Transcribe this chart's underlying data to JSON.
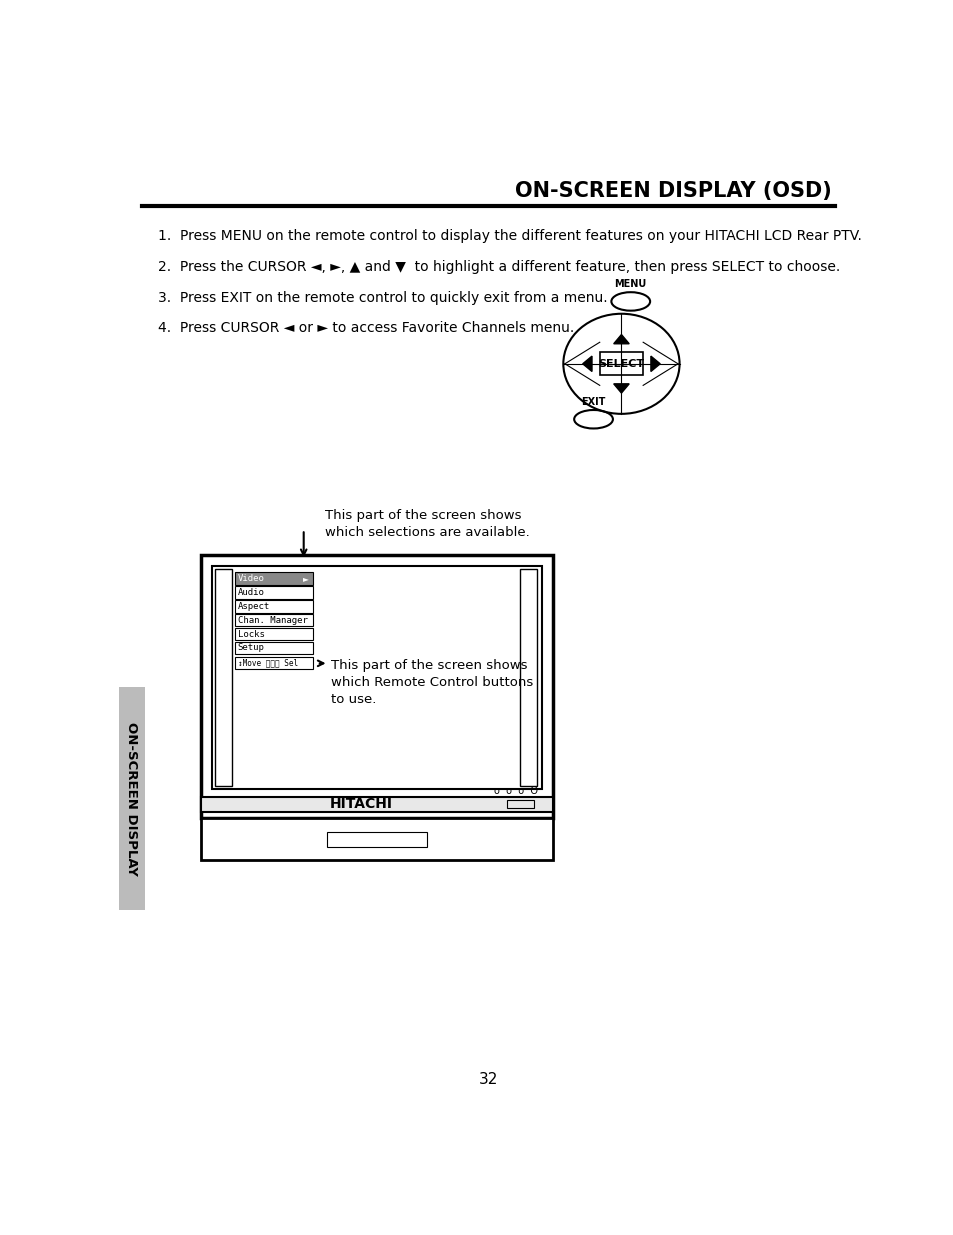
{
  "title": "ON-SCREEN DISPLAY (OSD)",
  "page_number": "32",
  "sidebar_text": "ON-SCREEN DISPLAY",
  "instructions": [
    "1.  Press MENU on the remote control to display the different features on your HITACHI LCD Rear PTV.",
    "2.  Press the CURSOR ◄, ►, ▲ and ▼  to highlight a different feature, then press SELECT to choose.",
    "3.  Press EXIT on the remote control to quickly exit from a menu.",
    "4.  Press CURSOR ◄ or ► to access Favorite Channels menu."
  ],
  "annotation1_text": "This part of the screen shows\nwhich selections are available.",
  "annotation2_text": "This part of the screen shows\nwhich Remote Control buttons\nto use.",
  "menu_items": [
    "Video",
    "Audio",
    "Aspect",
    "Chan. Manager",
    "Locks",
    "Setup"
  ],
  "status_bar_text": "↕Move  ⓈⓈⓈ Sel",
  "hitachi_label": "HITACHI",
  "menu_label": "MENU",
  "exit_label": "EXIT",
  "select_label": "SELECT",
  "bg_color": "#ffffff",
  "text_color": "#000000"
}
